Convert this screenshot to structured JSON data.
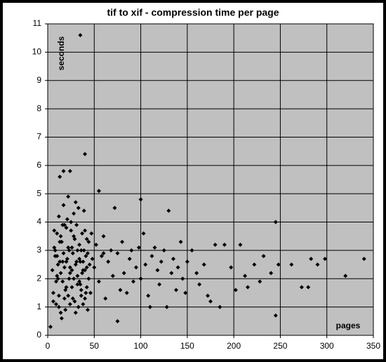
{
  "chart_data": {
    "type": "scatter",
    "title": "tif to xif - compression time per page",
    "y_label": "seconds",
    "x_label": "pages",
    "xlim": [
      0,
      350
    ],
    "xticks": [
      0,
      50,
      100,
      150,
      200,
      250,
      300,
      350
    ],
    "ylim": [
      0,
      11
    ],
    "yticks": [
      0,
      1,
      2,
      3,
      4,
      5,
      6,
      7,
      8,
      9,
      10,
      11
    ],
    "grid": true,
    "color": "#000000",
    "background": "#c0c0c0",
    "x": [
      5,
      6,
      7,
      8,
      9,
      10,
      11,
      12,
      13,
      14,
      15,
      16,
      17,
      18,
      19,
      20,
      21,
      22,
      23,
      24,
      25,
      26,
      27,
      28,
      29,
      30,
      31,
      32,
      33,
      34,
      35,
      36,
      37,
      38,
      39,
      40,
      41,
      42,
      43,
      44,
      8,
      10,
      12,
      14,
      16,
      18,
      20,
      22,
      24,
      26,
      28,
      30,
      32,
      34,
      36,
      38,
      40,
      42,
      44,
      46,
      9,
      11,
      13,
      15,
      17,
      19,
      21,
      23,
      25,
      27,
      29,
      31,
      33,
      35,
      37,
      39,
      41,
      43,
      45,
      47,
      50,
      52,
      55,
      58,
      60,
      62,
      65,
      68,
      70,
      72,
      75,
      78,
      80,
      82,
      85,
      88,
      90,
      92,
      95,
      98,
      100,
      103,
      105,
      108,
      110,
      112,
      115,
      118,
      120,
      122,
      125,
      128,
      130,
      133,
      135,
      138,
      140,
      143,
      145,
      148,
      150,
      155,
      160,
      163,
      168,
      172,
      175,
      180,
      185,
      190,
      197,
      202,
      207,
      212,
      215,
      222,
      228,
      232,
      240,
      245,
      245,
      248,
      262,
      273,
      280,
      283,
      290,
      298,
      320,
      340,
      35,
      40,
      13,
      17,
      24,
      55,
      100,
      3,
      75,
      60,
      6,
      10,
      14,
      18,
      22,
      26,
      30,
      34,
      38,
      42,
      7,
      12,
      16,
      20,
      24,
      28,
      32,
      36,
      40,
      48
    ],
    "values": [
      2.3,
      1.5,
      3.1,
      2.8,
      1.1,
      3.6,
      2.0,
      4.2,
      2.6,
      0.8,
      3.3,
      1.9,
      4.6,
      2.4,
      0.9,
      3.8,
      2.7,
      1.4,
      3.0,
      2.2,
      4.0,
      1.7,
      2.9,
      3.5,
      1.2,
      2.5,
      3.9,
      2.1,
      1.0,
      3.2,
      2.6,
      1.6,
      3.6,
      2.3,
      4.4,
      1.3,
      2.8,
      3.4,
      0.9,
      2.0,
      3.0,
      2.1,
      1.4,
      3.5,
      2.6,
      3.9,
      1.7,
      4.9,
      2.4,
      3.1,
      2.0,
      4.7,
      1.8,
      2.7,
      3.0,
      1.1,
      3.7,
      2.4,
      3.3,
      1.5,
      1.9,
      2.5,
      3.3,
      0.6,
      2.9,
      1.6,
      4.1,
      2.0,
      3.7,
      1.3,
      3.4,
      2.6,
      4.5,
      1.8,
      2.2,
      3.0,
      1.5,
      2.9,
      2.5,
      3.6,
      2.4,
      3.2,
      1.9,
      2.8,
      3.5,
      1.3,
      2.6,
      3.0,
      2.1,
      4.5,
      2.9,
      1.6,
      3.3,
      2.2,
      1.5,
      2.7,
      3.0,
      1.9,
      2.4,
      3.1,
      2.0,
      3.6,
      2.5,
      1.4,
      1.0,
      2.8,
      3.1,
      2.3,
      1.8,
      2.6,
      3.0,
      1.0,
      4.4,
      2.2,
      2.7,
      1.6,
      2.4,
      3.3,
      2.0,
      1.5,
      2.6,
      3.0,
      2.2,
      1.8,
      2.5,
      1.4,
      1.2,
      3.2,
      1.0,
      3.2,
      2.4,
      1.6,
      3.2,
      2.1,
      1.7,
      2.5,
      1.9,
      2.8,
      2.2,
      0.7,
      4.0,
      2.5,
      2.5,
      1.7,
      1.7,
      2.7,
      2.5,
      2.7,
      2.1,
      2.7,
      10.6,
      6.4,
      5.6,
      5.8,
      5.8,
      5.1,
      4.8,
      0.3,
      0.5,
      2.9,
      1.2,
      2.8,
      2.2,
      1.3,
      3.1,
      2.3,
      0.8,
      1.9,
      2.6,
      1.7,
      3.7,
      1.0,
      3.9,
      2.6,
      1.1,
      4.3,
      3.0,
      1.4,
      2.3,
      2.7
    ]
  }
}
